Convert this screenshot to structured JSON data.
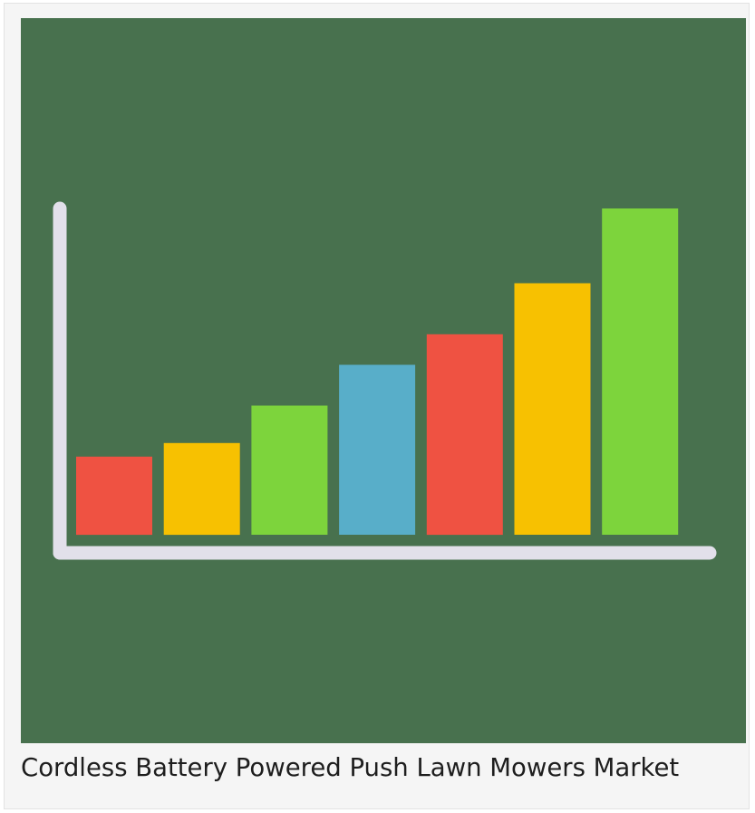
{
  "card": {
    "caption": "Cordless Battery Powered Push Lawn Mowers Market"
  },
  "chart_data": {
    "type": "bar",
    "title": "",
    "xlabel": "",
    "ylabel": "",
    "categories": [
      "",
      "",
      "",
      "",
      "",
      "",
      ""
    ],
    "values": [
      23,
      27,
      38,
      50,
      59,
      74,
      96
    ],
    "ylim": [
      0,
      100
    ],
    "grid": false,
    "legend": "none",
    "axis_labels_visible": false,
    "colors": {
      "background": "#48714e",
      "axis": "#e2e0ea",
      "bars": [
        "#ef5242",
        "#f7c101",
        "#7dd43c",
        "#58aec9",
        "#ef5242",
        "#f7c101",
        "#7dd43c"
      ]
    }
  }
}
